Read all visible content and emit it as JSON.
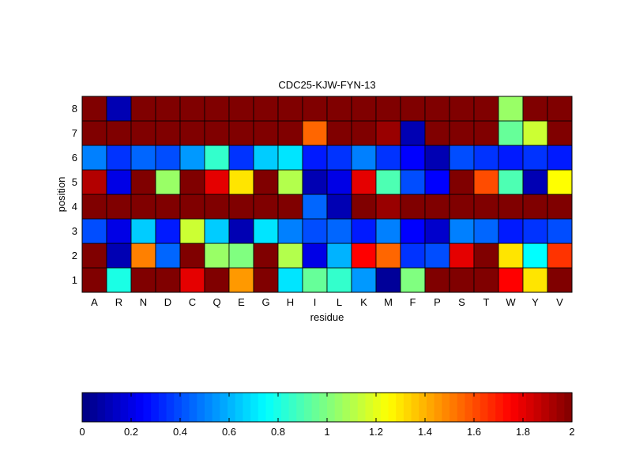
{
  "chart_data": [
    {
      "type": "heatmap",
      "title": "CDC25-KJW-FYN-13",
      "xlabel": "residue",
      "ylabel": "position",
      "x_categories": [
        "A",
        "R",
        "N",
        "D",
        "C",
        "Q",
        "E",
        "G",
        "H",
        "I",
        "L",
        "K",
        "M",
        "F",
        "P",
        "S",
        "T",
        "W",
        "Y",
        "V"
      ],
      "y_categories": [
        "1",
        "2",
        "3",
        "4",
        "5",
        "6",
        "7",
        "8"
      ],
      "colormap": "jet",
      "clim": [
        0,
        2
      ],
      "values": [
        [
          2.0,
          0.8,
          2.0,
          2.0,
          1.8,
          2.0,
          1.45,
          2.0,
          0.7,
          0.95,
          0.85,
          0.55,
          0.05,
          1.0,
          2.0,
          2.0,
          2.0,
          1.75,
          1.3,
          2.0
        ],
        [
          2.0,
          0.1,
          1.5,
          0.45,
          2.0,
          1.05,
          1.0,
          2.0,
          1.1,
          0.2,
          0.6,
          1.75,
          1.55,
          0.35,
          0.4,
          1.8,
          2.0,
          1.3,
          0.75,
          1.65
        ],
        [
          0.4,
          0.2,
          0.65,
          0.3,
          1.15,
          0.65,
          0.1,
          0.7,
          0.5,
          0.4,
          0.45,
          0.3,
          0.5,
          0.25,
          0.15,
          0.5,
          0.45,
          0.3,
          0.35,
          0.4
        ],
        [
          2.0,
          2.0,
          2.0,
          2.0,
          2.0,
          2.0,
          2.0,
          2.0,
          2.0,
          0.45,
          0.1,
          2.0,
          1.95,
          2.0,
          2.0,
          2.0,
          2.0,
          2.0,
          2.0,
          2.0
        ],
        [
          1.9,
          0.2,
          2.0,
          1.05,
          2.0,
          1.8,
          1.3,
          2.0,
          1.1,
          0.1,
          0.2,
          1.8,
          0.9,
          0.4,
          0.25,
          2.0,
          1.6,
          0.9,
          0.1,
          1.25
        ],
        [
          0.5,
          0.35,
          0.45,
          0.4,
          0.55,
          0.85,
          0.35,
          0.65,
          0.7,
          0.3,
          0.35,
          0.5,
          0.35,
          0.25,
          0.1,
          0.4,
          0.35,
          0.3,
          0.35,
          0.3
        ],
        [
          2.0,
          2.0,
          2.0,
          2.0,
          2.0,
          2.0,
          2.0,
          2.0,
          2.0,
          1.55,
          2.0,
          2.0,
          1.95,
          0.1,
          2.0,
          2.0,
          2.0,
          0.95,
          1.15,
          2.0
        ],
        [
          2.0,
          0.1,
          2.0,
          2.0,
          2.0,
          2.0,
          2.0,
          2.0,
          2.0,
          2.0,
          2.0,
          2.0,
          2.0,
          2.0,
          2.0,
          2.0,
          2.0,
          1.05,
          2.0,
          2.0
        ]
      ]
    },
    {
      "type": "colorbar",
      "ticks": [
        "0",
        "0.2",
        "0.4",
        "0.6",
        "0.8",
        "1",
        "1.2",
        "1.4",
        "1.6",
        "1.8",
        "2"
      ]
    }
  ]
}
